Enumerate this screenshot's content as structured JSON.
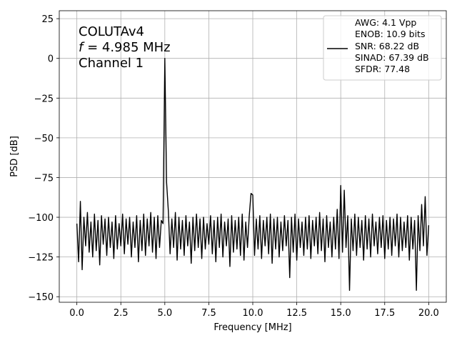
{
  "chart_data": {
    "type": "line",
    "annotation": [
      "COLUTAv4",
      [
        "f",
        " = 4.985 MHz"
      ],
      "Channel 1"
    ],
    "xlabel": "Frequency [MHz]",
    "ylabel": "PSD [dB]",
    "xlim": [
      -1,
      21
    ],
    "ylim": [
      -153.5,
      30
    ],
    "xticks": [
      {
        "value": 0,
        "label": "0.0"
      },
      {
        "value": 2.5,
        "label": "2.5"
      },
      {
        "value": 5,
        "label": "5.0"
      },
      {
        "value": 7.5,
        "label": "7.5"
      },
      {
        "value": 10,
        "label": "10.0"
      },
      {
        "value": 12.5,
        "label": "12.5"
      },
      {
        "value": 15,
        "label": "15.0"
      },
      {
        "value": 17.5,
        "label": "17.5"
      },
      {
        "value": 20,
        "label": "20.0"
      }
    ],
    "yticks": [
      {
        "value": -150,
        "label": "−150"
      },
      {
        "value": -125,
        "label": "−125"
      },
      {
        "value": -100,
        "label": "−100"
      },
      {
        "value": -75,
        "label": "−75"
      },
      {
        "value": -50,
        "label": "−50"
      },
      {
        "value": -25,
        "label": "−25"
      },
      0,
      25
    ],
    "grid": true,
    "legend": "upper right",
    "x": [
      0,
      0.1,
      0.2,
      0.3,
      0.4,
      0.5,
      0.6,
      0.7,
      0.8,
      0.9,
      1,
      1.1,
      1.2,
      1.3,
      1.4,
      1.5,
      1.6,
      1.7,
      1.8,
      1.9,
      2,
      2.1,
      2.2,
      2.3,
      2.4,
      2.5,
      2.6,
      2.7,
      2.8,
      2.9,
      3,
      3.1,
      3.2,
      3.3,
      3.4,
      3.5,
      3.6,
      3.7,
      3.8,
      3.9,
      4,
      4.1,
      4.2,
      4.3,
      4.4,
      4.5,
      4.6,
      4.7,
      4.8,
      4.9,
      5,
      5.1,
      5.2,
      5.3,
      5.4,
      5.5,
      5.6,
      5.7,
      5.8,
      5.9,
      6,
      6.1,
      6.2,
      6.3,
      6.4,
      6.5,
      6.6,
      6.7,
      6.8,
      6.9,
      7,
      7.1,
      7.2,
      7.3,
      7.4,
      7.5,
      7.6,
      7.7,
      7.8,
      7.9,
      8,
      8.1,
      8.2,
      8.3,
      8.4,
      8.5,
      8.6,
      8.7,
      8.8,
      8.9,
      9,
      9.1,
      9.2,
      9.3,
      9.4,
      9.5,
      9.6,
      9.7,
      9.8,
      9.9,
      10,
      10.1,
      10.2,
      10.3,
      10.4,
      10.5,
      10.6,
      10.7,
      10.8,
      10.9,
      11,
      11.1,
      11.2,
      11.3,
      11.4,
      11.5,
      11.6,
      11.7,
      11.8,
      11.9,
      12,
      12.1,
      12.2,
      12.3,
      12.4,
      12.5,
      12.6,
      12.7,
      12.8,
      12.9,
      13,
      13.1,
      13.2,
      13.3,
      13.4,
      13.5,
      13.6,
      13.7,
      13.8,
      13.9,
      14,
      14.1,
      14.2,
      14.3,
      14.4,
      14.5,
      14.6,
      14.7,
      14.8,
      14.9,
      15,
      15.1,
      15.2,
      15.3,
      15.4,
      15.5,
      15.6,
      15.7,
      15.8,
      15.9,
      16,
      16.1,
      16.2,
      16.3,
      16.4,
      16.5,
      16.6,
      16.7,
      16.8,
      16.9,
      17,
      17.1,
      17.2,
      17.3,
      17.4,
      17.5,
      17.6,
      17.7,
      17.8,
      17.9,
      18,
      18.1,
      18.2,
      18.3,
      18.4,
      18.5,
      18.6,
      18.7,
      18.8,
      18.9,
      19,
      19.1,
      19.2,
      19.3,
      19.4,
      19.5,
      19.6,
      19.7,
      19.8,
      19.9,
      20
    ],
    "series": [
      {
        "name": "AWG: 4.1 Vpp\nENOB: 10.9 bits\nSNR: 68.22 dB\nSINAD: 67.39 dB\nSFDR: 77.48",
        "color": "#000000",
        "values": [
          -104,
          -128,
          -90,
          -133,
          -100,
          -118,
          -97,
          -122,
          -103,
          -125,
          -98,
          -121,
          -102,
          -130,
          -99,
          -117,
          -101,
          -124,
          -100,
          -119,
          -103,
          -126,
          -99,
          -120,
          -104,
          -118,
          -98,
          -123,
          -101,
          -117,
          -100,
          -125,
          -103,
          -119,
          -99,
          -128,
          -102,
          -121,
          -98,
          -124,
          -101,
          -118,
          -97,
          -122,
          -100,
          -126,
          -99,
          -119,
          -102,
          -104,
          0,
          -78,
          -96,
          -123,
          -101,
          -119,
          -97,
          -127,
          -100,
          -120,
          -102,
          -124,
          -99,
          -118,
          -103,
          -129,
          -100,
          -121,
          -98,
          -119,
          -101,
          -126,
          -100,
          -120,
          -104,
          -117,
          -99,
          -123,
          -102,
          -128,
          -100,
          -119,
          -98,
          -125,
          -103,
          -118,
          -101,
          -131,
          -99,
          -122,
          -102,
          -120,
          -100,
          -124,
          -98,
          -127,
          -103,
          -119,
          -99,
          -85,
          -86,
          -124,
          -101,
          -120,
          -99,
          -126,
          -102,
          -118,
          -100,
          -123,
          -98,
          -129,
          -101,
          -120,
          -100,
          -125,
          -103,
          -121,
          -99,
          -118,
          -102,
          -138,
          -100,
          -122,
          -98,
          -127,
          -101,
          -119,
          -103,
          -124,
          -100,
          -120,
          -99,
          -126,
          -102,
          -118,
          -100,
          -123,
          -97,
          -121,
          -101,
          -128,
          -99,
          -119,
          -103,
          -125,
          -100,
          -120,
          -95,
          -126,
          -80,
          -122,
          -83,
          -119,
          -99,
          -146,
          -101,
          -121,
          -98,
          -124,
          -100,
          -119,
          -102,
          -127,
          -99,
          -120,
          -101,
          -125,
          -98,
          -118,
          -103,
          -123,
          -100,
          -119,
          -99,
          -126,
          -102,
          -120,
          -100,
          -124,
          -101,
          -118,
          -98,
          -125,
          -100,
          -121,
          -103,
          -119,
          -99,
          -127,
          -100,
          -120,
          -102,
          -146,
          -99,
          -121,
          -92,
          -118,
          -87,
          -124,
          -105
        ]
      }
    ]
  }
}
